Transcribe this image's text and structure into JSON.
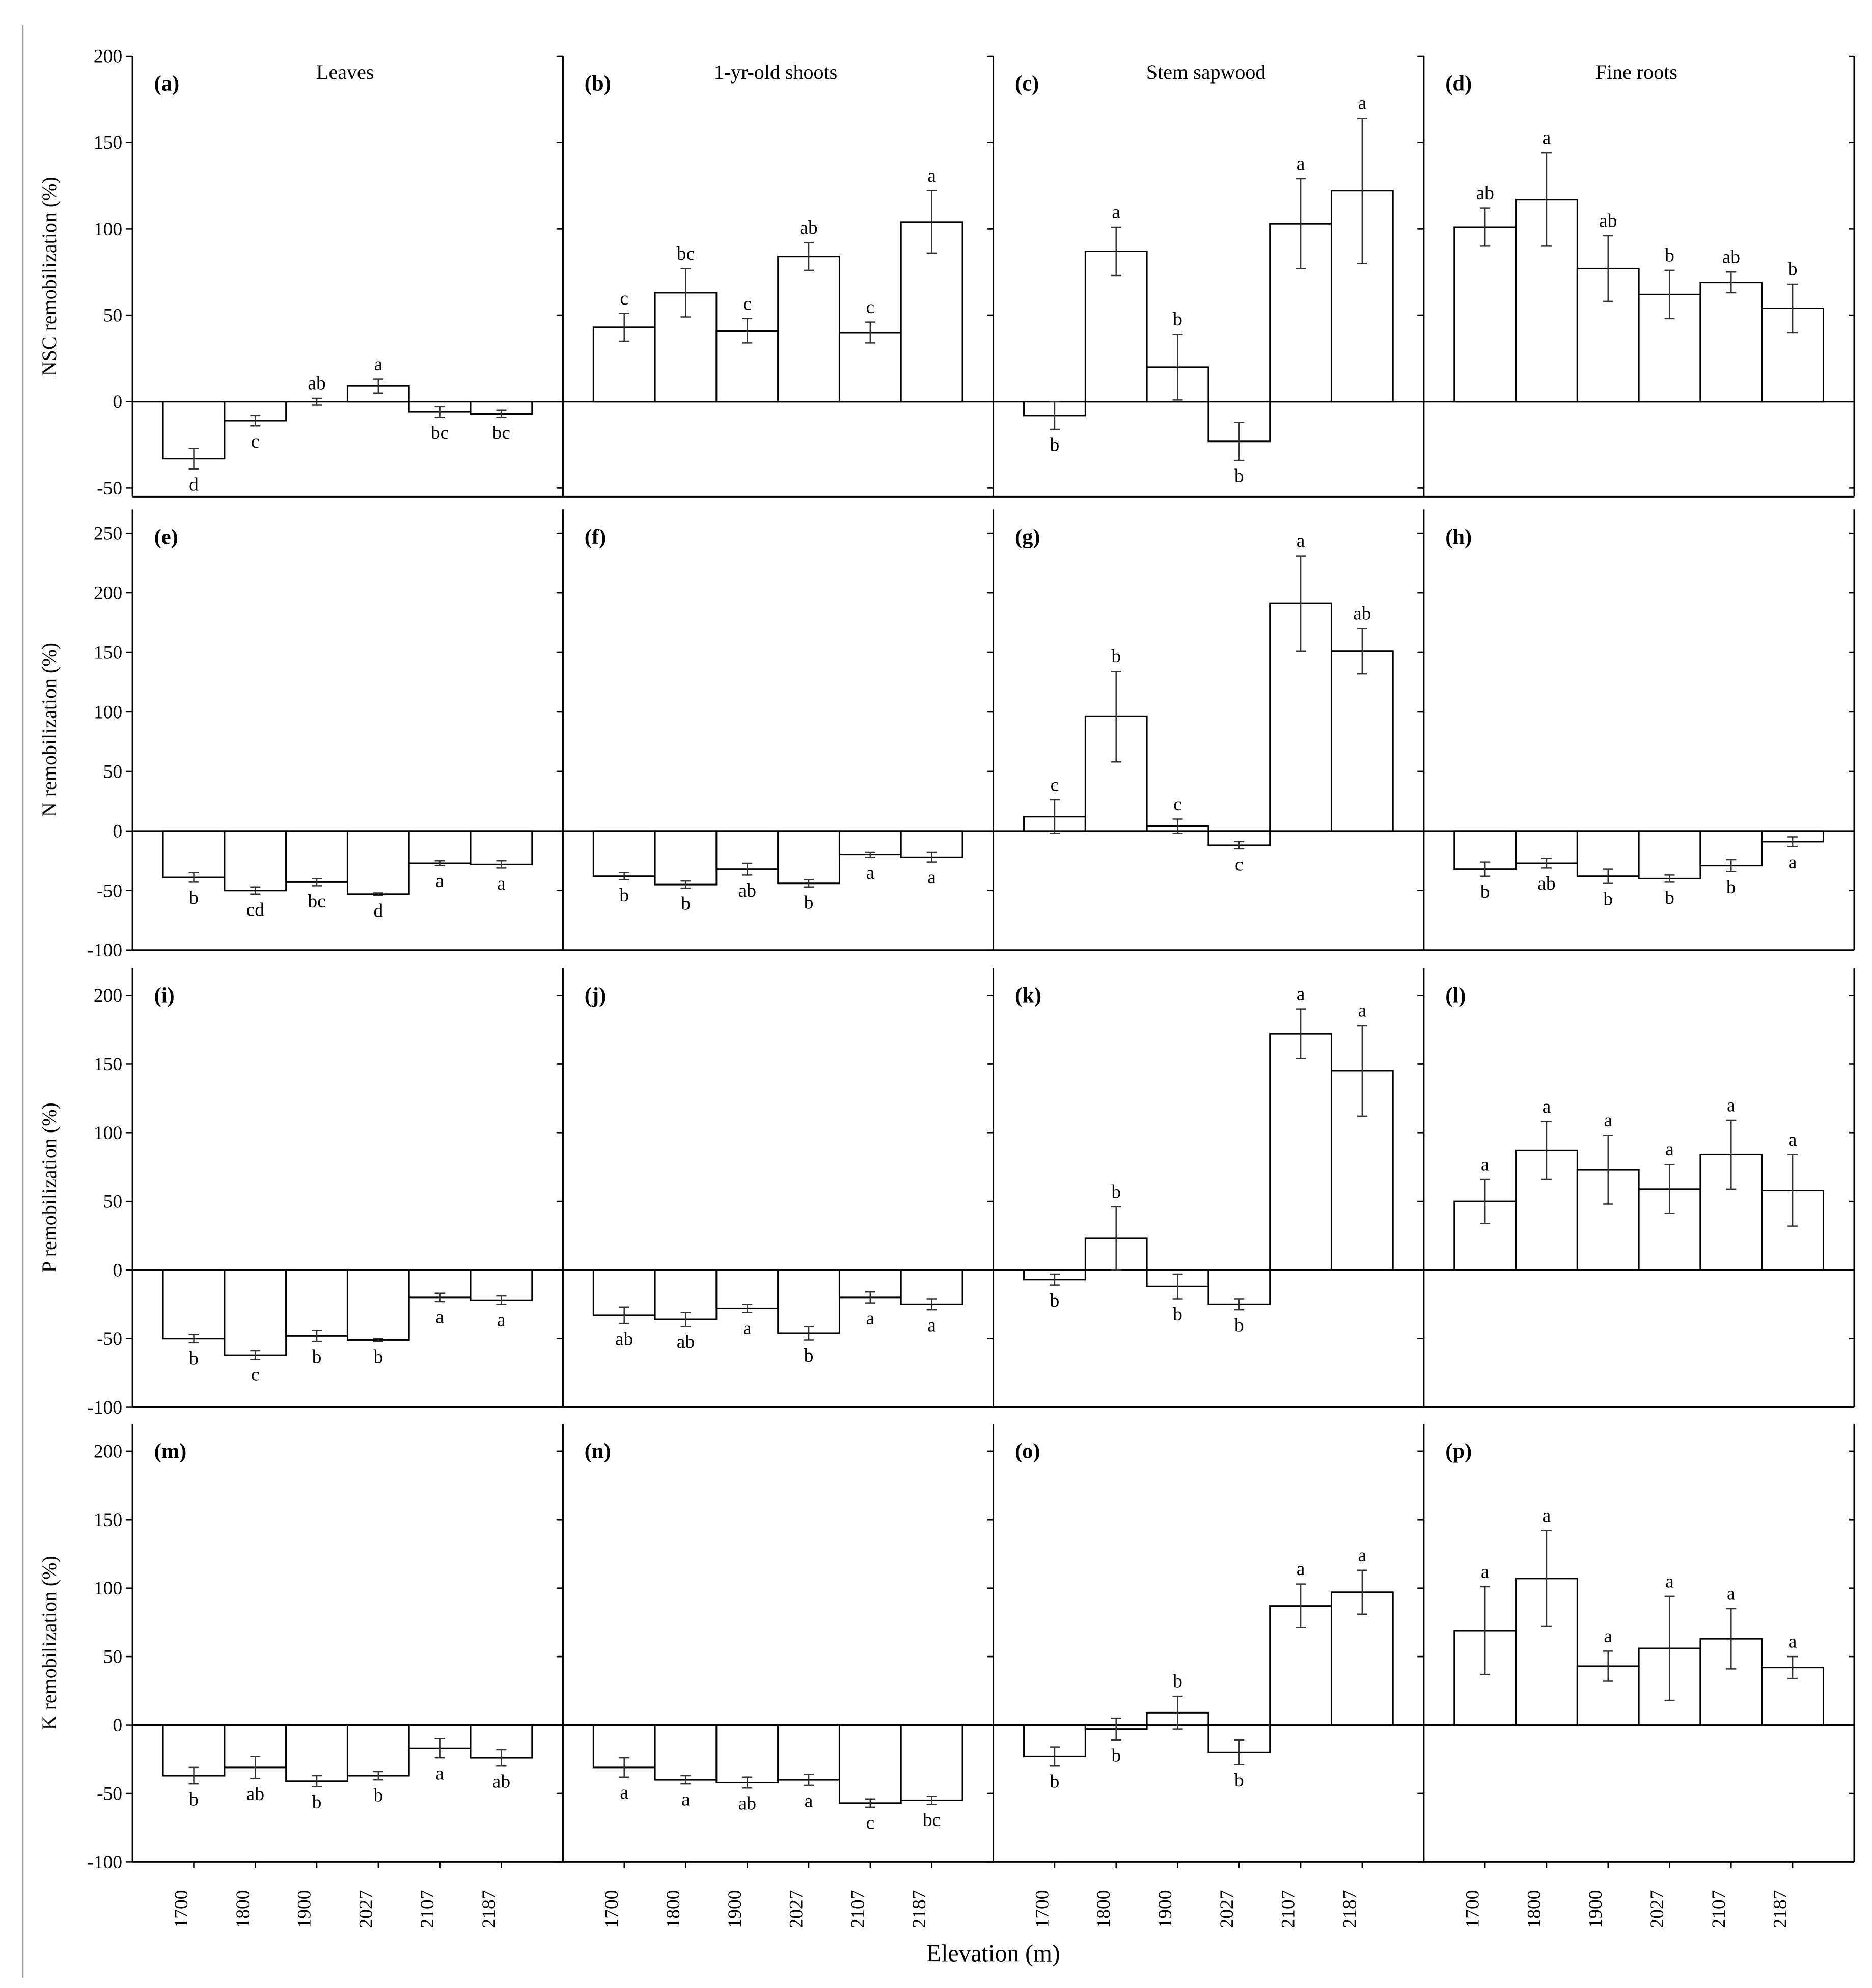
{
  "xlabel": "Elevation (m)",
  "chart_data": [
    {
      "type": "bar",
      "panel": "(a)",
      "title": "Leaves",
      "ylabel": "NSC remobilization (%)",
      "categories": [
        "1700",
        "1800",
        "1900",
        "2027",
        "2107",
        "2187"
      ],
      "values": [
        -33,
        -11,
        0,
        9,
        -6,
        -7
      ],
      "errors": [
        6,
        3,
        2,
        4,
        3,
        2
      ],
      "letters": [
        "d",
        "c",
        "ab",
        "a",
        "bc",
        "bc"
      ],
      "ylim": [
        -55,
        200
      ],
      "yticks": [
        -50,
        0,
        50,
        100,
        150,
        200
      ]
    },
    {
      "type": "bar",
      "panel": "(b)",
      "title": "1-yr-old shoots",
      "ylabel": "",
      "categories": [
        "1700",
        "1800",
        "1900",
        "2027",
        "2107",
        "2187"
      ],
      "values": [
        43,
        63,
        41,
        84,
        40,
        104
      ],
      "errors": [
        8,
        14,
        7,
        8,
        6,
        18
      ],
      "letters": [
        "c",
        "bc",
        "c",
        "ab",
        "c",
        "a"
      ],
      "ylim": [
        -55,
        200
      ],
      "yticks": [
        -50,
        0,
        50,
        100,
        150,
        200
      ]
    },
    {
      "type": "bar",
      "panel": "(c)",
      "title": "Stem sapwood",
      "ylabel": "",
      "categories": [
        "1700",
        "1800",
        "1900",
        "2027",
        "2107",
        "2187"
      ],
      "values": [
        -8,
        87,
        20,
        -23,
        103,
        122
      ],
      "errors": [
        8,
        14,
        19,
        11,
        26,
        42
      ],
      "letters": [
        "b",
        "a",
        "b",
        "b",
        "a",
        "a"
      ],
      "ylim": [
        -55,
        200
      ],
      "yticks": [
        -50,
        0,
        50,
        100,
        150,
        200
      ]
    },
    {
      "type": "bar",
      "panel": "(d)",
      "title": "Fine roots",
      "ylabel": "",
      "categories": [
        "1700",
        "1800",
        "1900",
        "2027",
        "2107",
        "2187"
      ],
      "values": [
        101,
        117,
        77,
        62,
        69,
        54
      ],
      "errors": [
        11,
        27,
        19,
        14,
        6,
        14
      ],
      "letters": [
        "ab",
        "a",
        "ab",
        "b",
        "ab",
        "b"
      ],
      "ylim": [
        -55,
        200
      ],
      "yticks": [
        -50,
        0,
        50,
        100,
        150,
        200
      ]
    },
    {
      "type": "bar",
      "panel": "(e)",
      "title": "",
      "ylabel": "N remobilization (%)",
      "categories": [
        "1700",
        "1800",
        "1900",
        "2027",
        "2107",
        "2187"
      ],
      "values": [
        -39,
        -50,
        -43,
        -53,
        -27,
        -28
      ],
      "errors": [
        4,
        3,
        3,
        1,
        2,
        3
      ],
      "letters": [
        "b",
        "cd",
        "bc",
        "d",
        "a",
        "a"
      ],
      "ylim": [
        -100,
        270
      ],
      "yticks": [
        -100,
        -50,
        0,
        50,
        100,
        150,
        200,
        250
      ]
    },
    {
      "type": "bar",
      "panel": "(f)",
      "title": "",
      "ylabel": "",
      "categories": [
        "1700",
        "1800",
        "1900",
        "2027",
        "2107",
        "2187"
      ],
      "values": [
        -38,
        -45,
        -32,
        -44,
        -20,
        -22
      ],
      "errors": [
        3,
        3,
        5,
        3,
        2,
        4
      ],
      "letters": [
        "b",
        "b",
        "ab",
        "b",
        "a",
        "a"
      ],
      "ylim": [
        -100,
        270
      ],
      "yticks": [
        -100,
        -50,
        0,
        50,
        100,
        150,
        200,
        250
      ]
    },
    {
      "type": "bar",
      "panel": "(g)",
      "title": "",
      "ylabel": "",
      "categories": [
        "1700",
        "1800",
        "1900",
        "2027",
        "2107",
        "2187"
      ],
      "values": [
        12,
        96,
        4,
        -12,
        191,
        151
      ],
      "errors": [
        14,
        38,
        6,
        3,
        40,
        19
      ],
      "letters": [
        "c",
        "b",
        "c",
        "c",
        "a",
        "ab"
      ],
      "ylim": [
        -100,
        270
      ],
      "yticks": [
        -100,
        -50,
        0,
        50,
        100,
        150,
        200,
        250
      ]
    },
    {
      "type": "bar",
      "panel": "(h)",
      "title": "",
      "ylabel": "",
      "categories": [
        "1700",
        "1800",
        "1900",
        "2027",
        "2107",
        "2187"
      ],
      "values": [
        -32,
        -27,
        -38,
        -40,
        -29,
        -9
      ],
      "errors": [
        6,
        4,
        6,
        3,
        5,
        4
      ],
      "letters": [
        "b",
        "ab",
        "b",
        "b",
        "b",
        "a"
      ],
      "ylim": [
        -100,
        270
      ],
      "yticks": [
        -100,
        -50,
        0,
        50,
        100,
        150,
        200,
        250
      ]
    },
    {
      "type": "bar",
      "panel": "(i)",
      "title": "",
      "ylabel": "P remobilization (%)",
      "categories": [
        "1700",
        "1800",
        "1900",
        "2027",
        "2107",
        "2187"
      ],
      "values": [
        -50,
        -62,
        -48,
        -51,
        -20,
        -22
      ],
      "errors": [
        3,
        3,
        4,
        1,
        3,
        3
      ],
      "letters": [
        "b",
        "c",
        "b",
        "b",
        "a",
        "a"
      ],
      "ylim": [
        -100,
        220
      ],
      "yticks": [
        -100,
        -50,
        0,
        50,
        100,
        150,
        200
      ]
    },
    {
      "type": "bar",
      "panel": "(j)",
      "title": "",
      "ylabel": "",
      "categories": [
        "1700",
        "1800",
        "1900",
        "2027",
        "2107",
        "2187"
      ],
      "values": [
        -33,
        -36,
        -28,
        -46,
        -20,
        -25
      ],
      "errors": [
        6,
        5,
        3,
        5,
        4,
        4
      ],
      "letters": [
        "ab",
        "ab",
        "a",
        "b",
        "a",
        "a"
      ],
      "ylim": [
        -100,
        220
      ],
      "yticks": [
        -100,
        -50,
        0,
        50,
        100,
        150,
        200
      ]
    },
    {
      "type": "bar",
      "panel": "(k)",
      "title": "",
      "ylabel": "",
      "categories": [
        "1700",
        "1800",
        "1900",
        "2027",
        "2107",
        "2187"
      ],
      "values": [
        -7,
        23,
        -12,
        -25,
        172,
        145
      ],
      "errors": [
        4,
        23,
        9,
        4,
        18,
        33
      ],
      "letters": [
        "b",
        "b",
        "b",
        "b",
        "a",
        "a"
      ],
      "ylim": [
        -100,
        220
      ],
      "yticks": [
        -100,
        -50,
        0,
        50,
        100,
        150,
        200
      ]
    },
    {
      "type": "bar",
      "panel": "(l)",
      "title": "",
      "ylabel": "",
      "categories": [
        "1700",
        "1800",
        "1900",
        "2027",
        "2107",
        "2187"
      ],
      "values": [
        50,
        87,
        73,
        59,
        84,
        58
      ],
      "errors": [
        16,
        21,
        25,
        18,
        25,
        26
      ],
      "letters": [
        "a",
        "a",
        "a",
        "a",
        "a",
        "a"
      ],
      "ylim": [
        -100,
        220
      ],
      "yticks": [
        -100,
        -50,
        0,
        50,
        100,
        150,
        200
      ]
    },
    {
      "type": "bar",
      "panel": "(m)",
      "title": "",
      "ylabel": "K remobilization (%)",
      "categories": [
        "1700",
        "1800",
        "1900",
        "2027",
        "2107",
        "2187"
      ],
      "values": [
        -37,
        -31,
        -41,
        -37,
        -17,
        -24
      ],
      "errors": [
        6,
        8,
        4,
        3,
        7,
        6
      ],
      "letters": [
        "b",
        "ab",
        "b",
        "b",
        "a",
        "ab"
      ],
      "ylim": [
        -100,
        220
      ],
      "yticks": [
        -100,
        -50,
        0,
        50,
        100,
        150,
        200
      ]
    },
    {
      "type": "bar",
      "panel": "(n)",
      "title": "",
      "ylabel": "",
      "categories": [
        "1700",
        "1800",
        "1900",
        "2027",
        "2107",
        "2187"
      ],
      "values": [
        -31,
        -40,
        -42,
        -40,
        -57,
        -55
      ],
      "errors": [
        7,
        3,
        4,
        4,
        3,
        3
      ],
      "letters": [
        "a",
        "a",
        "ab",
        "a",
        "c",
        "bc"
      ],
      "ylim": [
        -100,
        220
      ],
      "yticks": [
        -100,
        -50,
        0,
        50,
        100,
        150,
        200
      ]
    },
    {
      "type": "bar",
      "panel": "(o)",
      "title": "",
      "ylabel": "",
      "categories": [
        "1700",
        "1800",
        "1900",
        "2027",
        "2107",
        "2187"
      ],
      "values": [
        -23,
        -3,
        9,
        -20,
        87,
        97
      ],
      "errors": [
        7,
        8,
        12,
        9,
        16,
        16
      ],
      "letters": [
        "b",
        "b",
        "b",
        "b",
        "a",
        "a"
      ],
      "ylim": [
        -100,
        220
      ],
      "yticks": [
        -100,
        -50,
        0,
        50,
        100,
        150,
        200
      ]
    },
    {
      "type": "bar",
      "panel": "(p)",
      "title": "",
      "ylabel": "",
      "categories": [
        "1700",
        "1800",
        "1900",
        "2027",
        "2107",
        "2187"
      ],
      "values": [
        69,
        107,
        43,
        56,
        63,
        42
      ],
      "errors": [
        32,
        35,
        11,
        38,
        22,
        8
      ],
      "letters": [
        "a",
        "a",
        "a",
        "a",
        "a",
        "a"
      ],
      "ylim": [
        -100,
        220
      ],
      "yticks": [
        -100,
        -50,
        0,
        50,
        100,
        150,
        200
      ]
    }
  ]
}
